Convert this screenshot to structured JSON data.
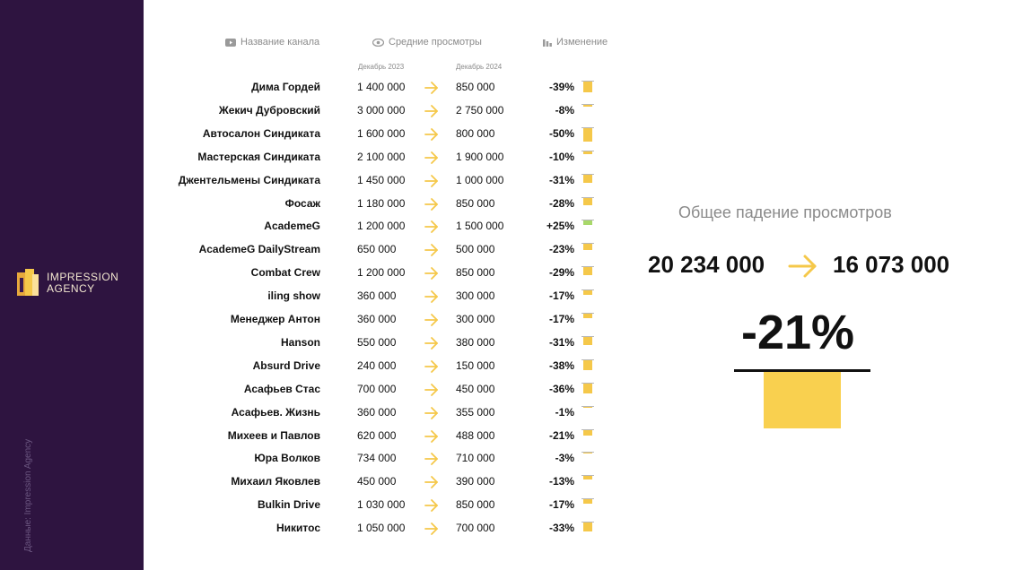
{
  "brand": {
    "logo_line1": "IMPRESSION",
    "logo_line2": "AGENCY",
    "credit": "Данные: Impression Agency"
  },
  "table": {
    "headers": {
      "channel": "Название канала",
      "views": "Средние просмотры",
      "change": "Изменение"
    },
    "subheaders": {
      "from": "Декабрь 2023",
      "to": "Декабрь 2024"
    },
    "rows": [
      {
        "name": "Дима Гордей",
        "from": "1 400 000",
        "to": "850 000",
        "change": "-39%",
        "change_value": -39
      },
      {
        "name": "Жекич Дубровский",
        "from": "3 000 000",
        "to": "2 750 000",
        "change": "-8%",
        "change_value": -8
      },
      {
        "name": "Автосалон Синдиката",
        "from": "1 600 000",
        "to": "800 000",
        "change": "-50%",
        "change_value": -50
      },
      {
        "name": "Мастерская Синдиката",
        "from": "2 100 000",
        "to": "1 900 000",
        "change": "-10%",
        "change_value": -10
      },
      {
        "name": "Джентельмены Синдиката",
        "from": "1 450 000",
        "to": "1 000 000",
        "change": "-31%",
        "change_value": -31
      },
      {
        "name": "Фосаж",
        "from": "1 180 000",
        "to": "850 000",
        "change": "-28%",
        "change_value": -28
      },
      {
        "name": "AcademeG",
        "from": "1 200 000",
        "to": "1 500 000",
        "change": "+25%",
        "change_value": 25
      },
      {
        "name": "AcademeG DailyStream",
        "from": "650 000",
        "to": "500 000",
        "change": "-23%",
        "change_value": -23
      },
      {
        "name": "Combat Crew",
        "from": "1 200 000",
        "to": "850 000",
        "change": "-29%",
        "change_value": -29
      },
      {
        "name": "iling show",
        "from": "360 000",
        "to": "300 000",
        "change": "-17%",
        "change_value": -17
      },
      {
        "name": "Менеджер Антон",
        "from": "360 000",
        "to": "300 000",
        "change": "-17%",
        "change_value": -17
      },
      {
        "name": "Hanson",
        "from": "550 000",
        "to": "380 000",
        "change": "-31%",
        "change_value": -31
      },
      {
        "name": "Absurd Drive",
        "from": "240 000",
        "to": "150 000",
        "change": "-38%",
        "change_value": -38
      },
      {
        "name": "Асафьев Стас",
        "from": "700 000",
        "to": "450 000",
        "change": "-36%",
        "change_value": -36
      },
      {
        "name": "Асафьев. Жизнь",
        "from": "360 000",
        "to": "355 000",
        "change": "-1%",
        "change_value": -1
      },
      {
        "name": "Михеев и Павлов",
        "from": "620 000",
        "to": "488 000",
        "change": "-21%",
        "change_value": -21
      },
      {
        "name": "Юра Волков",
        "from": "734 000",
        "to": "710 000",
        "change": "-3%",
        "change_value": -3
      },
      {
        "name": "Михаил Яковлев",
        "from": "450 000",
        "to": "390 000",
        "change": "-13%",
        "change_value": -13
      },
      {
        "name": "Bulkin Drive",
        "from": "1 030 000",
        "to": "850 000",
        "change": "-17%",
        "change_value": -17
      },
      {
        "name": "Никитос",
        "from": "1 050 000",
        "to": "700 000",
        "change": "-33%",
        "change_value": -33
      }
    ]
  },
  "summary": {
    "title": "Общее падение просмотров",
    "from": "20 234 000",
    "to": "16 073 000",
    "change": "-21%",
    "change_value": -21
  },
  "colors": {
    "sidebar_bg": "#2e1440",
    "accent_yellow": "#f5c84a",
    "positive_green": "#a8d86a",
    "muted_text": "#8a8a8a"
  },
  "icons": {
    "channel_header": "youtube-icon",
    "views_header": "eye-icon",
    "change_header": "bar-chart-icon",
    "row_arrow": "arrow-right-icon"
  }
}
